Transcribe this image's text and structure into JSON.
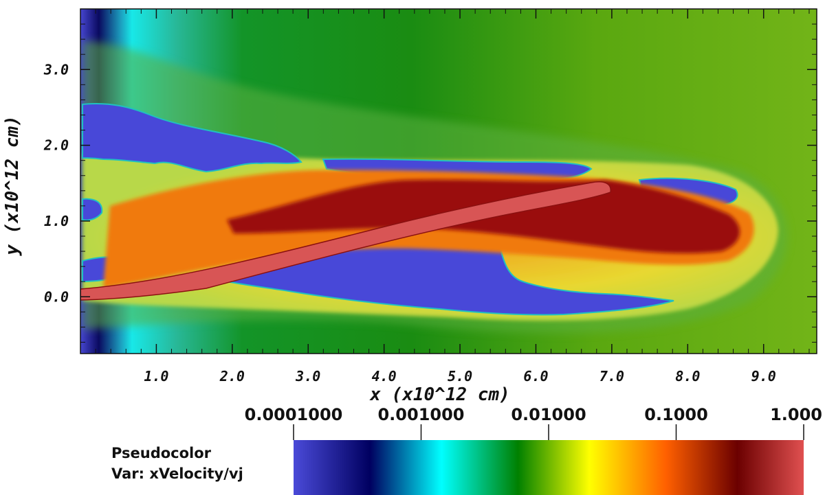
{
  "chart_data": {
    "type": "heatmap",
    "title": "",
    "plot_type_label": "Pseudocolor",
    "variable_label": "Var: xVelocity/vj",
    "xlabel": "x (x10^12 cm)",
    "ylabel": "y (x10^12 cm)",
    "xlim": [
      0.0,
      9.7
    ],
    "ylim": [
      -0.75,
      3.8
    ],
    "x_ticks": [
      {
        "value": 1.0,
        "label": "1.0"
      },
      {
        "value": 2.0,
        "label": "2.0"
      },
      {
        "value": 3.0,
        "label": "3.0"
      },
      {
        "value": 4.0,
        "label": "4.0"
      },
      {
        "value": 5.0,
        "label": "5.0"
      },
      {
        "value": 6.0,
        "label": "6.0"
      },
      {
        "value": 7.0,
        "label": "7.0"
      },
      {
        "value": 8.0,
        "label": "8.0"
      },
      {
        "value": 9.0,
        "label": "9.0"
      }
    ],
    "y_ticks": [
      {
        "value": 0.0,
        "label": "0.0"
      },
      {
        "value": 1.0,
        "label": "1.0"
      },
      {
        "value": 2.0,
        "label": "2.0"
      },
      {
        "value": 3.0,
        "label": "3.0"
      }
    ],
    "colorbar": {
      "scale": "log",
      "range": [
        0.0001,
        1.0
      ],
      "ticks": [
        {
          "value": 0.0001,
          "label": "0.0001000"
        },
        {
          "value": 0.001,
          "label": "0.001000"
        },
        {
          "value": 0.01,
          "label": "0.01000"
        },
        {
          "value": 0.1,
          "label": "0.1000"
        },
        {
          "value": 1.0,
          "label": "1.000"
        }
      ],
      "colors": [
        "#4a4ad8",
        "#000060",
        "#00ffff",
        "#008000",
        "#ffff00",
        "#ff6000",
        "#6b0000",
        "#e05050"
      ]
    },
    "features": {
      "jet_beam": {
        "x_start": 0.0,
        "y_start": 0.03,
        "x_end": 6.9,
        "y_end": 1.3,
        "value": 1.0
      },
      "cocoon_tip_x": 9.2,
      "background_value": 0.01
    },
    "grid": false,
    "legend_position": "bottom-left"
  }
}
